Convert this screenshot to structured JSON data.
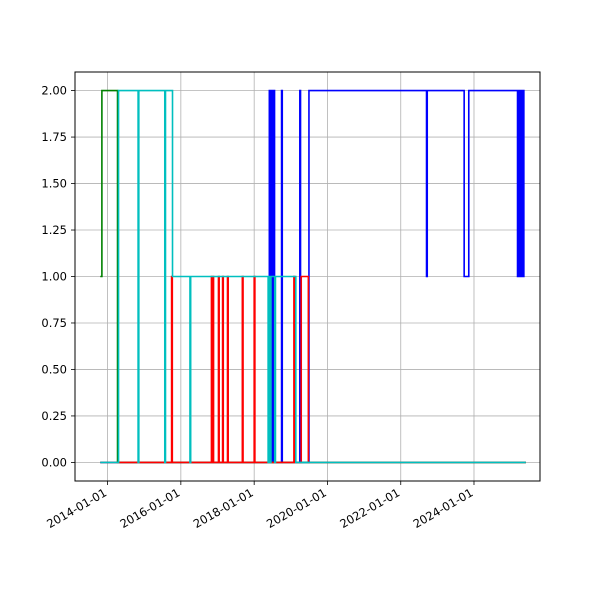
{
  "chart_data": {
    "type": "line",
    "title": "",
    "xlabel": "",
    "ylabel": "",
    "xaxis_type": "date",
    "xlim": [
      "2013-02-10",
      "2025-10-20"
    ],
    "ylim": [
      -0.1,
      2.1
    ],
    "grid": true,
    "legend": "none",
    "x_ticks": [
      "2014-01-01",
      "2016-01-01",
      "2018-01-01",
      "2020-01-01",
      "2022-01-01",
      "2024-01-01"
    ],
    "y_ticks": [
      "0.00",
      "0.25",
      "0.50",
      "0.75",
      "1.00",
      "1.25",
      "1.50",
      "1.75",
      "2.00"
    ],
    "series": [
      {
        "color": "#0000ff",
        "points": [
          [
            "2013-10-20",
            0
          ],
          [
            "2018-06-01",
            0
          ],
          [
            "2018-06-01",
            2
          ],
          [
            "2018-06-10",
            2
          ],
          [
            "2018-06-10",
            0
          ],
          [
            "2018-06-18",
            0
          ],
          [
            "2018-06-18",
            2
          ],
          [
            "2018-06-25",
            2
          ],
          [
            "2018-06-25",
            0
          ],
          [
            "2018-07-02",
            0
          ],
          [
            "2018-07-02",
            2
          ],
          [
            "2018-07-09",
            2
          ],
          [
            "2018-07-09",
            0
          ],
          [
            "2018-07-16",
            0
          ],
          [
            "2018-07-16",
            2
          ],
          [
            "2018-07-23",
            2
          ],
          [
            "2018-07-23",
            0
          ],
          [
            "2018-10-01",
            0
          ],
          [
            "2018-10-01",
            2
          ],
          [
            "2018-10-08",
            2
          ],
          [
            "2018-10-08",
            0
          ],
          [
            "2019-04-01",
            0
          ],
          [
            "2019-04-01",
            2
          ],
          [
            "2019-04-08",
            2
          ],
          [
            "2019-04-08",
            0
          ],
          [
            "2019-07-01",
            0
          ],
          [
            "2019-07-01",
            2
          ],
          [
            "2022-09-15",
            2
          ],
          [
            "2022-09-15",
            1
          ],
          [
            "2022-09-22",
            1
          ],
          [
            "2022-09-22",
            2
          ],
          [
            "2023-09-25",
            2
          ],
          [
            "2023-09-25",
            1
          ],
          [
            "2023-11-10",
            1
          ],
          [
            "2023-11-10",
            2
          ],
          [
            "2025-03-10",
            2
          ],
          [
            "2025-03-10",
            1
          ],
          [
            "2025-03-17",
            1
          ],
          [
            "2025-03-17",
            2
          ],
          [
            "2025-03-24",
            2
          ],
          [
            "2025-03-24",
            1
          ],
          [
            "2025-03-31",
            1
          ],
          [
            "2025-03-31",
            2
          ],
          [
            "2025-04-07",
            2
          ],
          [
            "2025-04-07",
            1
          ],
          [
            "2025-04-14",
            1
          ],
          [
            "2025-04-14",
            2
          ],
          [
            "2025-04-21",
            2
          ],
          [
            "2025-04-21",
            1
          ],
          [
            "2025-04-28",
            1
          ],
          [
            "2025-04-28",
            2
          ],
          [
            "2025-05-05",
            2
          ],
          [
            "2025-05-05",
            1
          ],
          [
            "2025-05-12",
            1
          ],
          [
            "2025-05-12",
            2
          ],
          [
            "2025-05-20",
            2
          ]
        ]
      },
      {
        "color": "#008000",
        "points": [
          [
            "2013-10-20",
            1
          ],
          [
            "2013-11-05",
            1
          ],
          [
            "2013-11-05",
            2
          ],
          [
            "2014-04-10",
            2
          ],
          [
            "2014-04-10",
            0
          ],
          [
            "2025-06-01",
            0
          ]
        ]
      },
      {
        "color": "#ff0000",
        "points": [
          [
            "2013-10-20",
            0
          ],
          [
            "2015-10-01",
            0
          ],
          [
            "2015-10-01",
            1
          ],
          [
            "2015-10-08",
            1
          ],
          [
            "2015-10-08",
            0
          ],
          [
            "2016-11-01",
            0
          ],
          [
            "2016-11-01",
            1
          ],
          [
            "2016-11-08",
            1
          ],
          [
            "2016-11-08",
            0
          ],
          [
            "2016-11-15",
            0
          ],
          [
            "2016-11-15",
            1
          ],
          [
            "2016-11-22",
            1
          ],
          [
            "2016-11-22",
            0
          ],
          [
            "2017-01-10",
            0
          ],
          [
            "2017-01-10",
            1
          ],
          [
            "2017-01-17",
            1
          ],
          [
            "2017-01-17",
            0
          ],
          [
            "2017-02-20",
            0
          ],
          [
            "2017-02-20",
            1
          ],
          [
            "2017-02-27",
            1
          ],
          [
            "2017-02-27",
            0
          ],
          [
            "2017-04-10",
            0
          ],
          [
            "2017-04-10",
            1
          ],
          [
            "2017-04-17",
            1
          ],
          [
            "2017-04-17",
            0
          ],
          [
            "2017-09-05",
            0
          ],
          [
            "2017-09-05",
            1
          ],
          [
            "2017-09-12",
            1
          ],
          [
            "2017-09-12",
            0
          ],
          [
            "2018-01-01",
            0
          ],
          [
            "2018-01-01",
            1
          ],
          [
            "2018-01-08",
            1
          ],
          [
            "2018-01-08",
            0
          ],
          [
            "2019-02-01",
            0
          ],
          [
            "2019-02-01",
            1
          ],
          [
            "2019-02-08",
            1
          ],
          [
            "2019-02-08",
            0
          ],
          [
            "2019-04-15",
            0
          ],
          [
            "2019-04-15",
            1
          ],
          [
            "2019-06-25",
            1
          ],
          [
            "2019-06-25",
            0
          ],
          [
            "2025-06-01",
            0
          ]
        ]
      },
      {
        "color": "#00bfbf",
        "points": [
          [
            "2013-10-20",
            0
          ],
          [
            "2014-04-20",
            0
          ],
          [
            "2014-04-20",
            2
          ],
          [
            "2014-11-01",
            2
          ],
          [
            "2014-11-01",
            0
          ],
          [
            "2014-11-08",
            0
          ],
          [
            "2014-11-08",
            2
          ],
          [
            "2015-07-25",
            2
          ],
          [
            "2015-07-25",
            0
          ],
          [
            "2015-08-01",
            0
          ],
          [
            "2015-08-01",
            2
          ],
          [
            "2015-10-10",
            2
          ],
          [
            "2015-10-10",
            1
          ],
          [
            "2016-04-01",
            1
          ],
          [
            "2016-04-01",
            0
          ],
          [
            "2016-04-08",
            0
          ],
          [
            "2016-04-08",
            1
          ],
          [
            "2018-05-20",
            1
          ],
          [
            "2018-05-20",
            0
          ],
          [
            "2018-05-27",
            0
          ],
          [
            "2018-05-27",
            1
          ],
          [
            "2018-06-10",
            1
          ],
          [
            "2018-06-10",
            0
          ],
          [
            "2018-06-17",
            0
          ],
          [
            "2018-06-17",
            1
          ],
          [
            "2018-07-25",
            1
          ],
          [
            "2018-07-25",
            0
          ],
          [
            "2018-08-01",
            0
          ],
          [
            "2018-08-01",
            1
          ],
          [
            "2019-02-20",
            1
          ],
          [
            "2019-02-20",
            0
          ],
          [
            "2025-06-01",
            0
          ]
        ]
      }
    ]
  }
}
